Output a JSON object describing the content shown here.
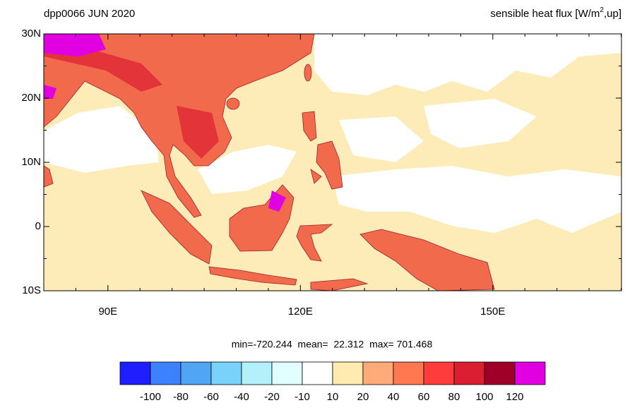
{
  "header": {
    "title": "dpp0066 JUN 2020",
    "variable": "sensible heat flux [W/m",
    "variable_superscript": "2",
    "variable_end": ",up]"
  },
  "map": {
    "lat_labels": [
      "30N",
      "20N",
      "10N",
      "0",
      "10S"
    ],
    "lon_labels": [
      "90E",
      "120E",
      "150E"
    ]
  },
  "stats": "min=-720.244  mean=  22.312  max= 701.468",
  "colorbar": {
    "colors": [
      "#1e1eff",
      "#3c82ff",
      "#50a5f5",
      "#78d2fa",
      "#b4f0fa",
      "#e1ffff",
      "#ffffff",
      "#ffebaf",
      "#ffaa78",
      "#ff7850",
      "#ff3c3c",
      "#dc1e32",
      "#a00028",
      "#e100e1"
    ],
    "labels": [
      -100,
      -80,
      -60,
      -40,
      -20,
      -10,
      10,
      20,
      40,
      60,
      80,
      100,
      120
    ]
  }
}
